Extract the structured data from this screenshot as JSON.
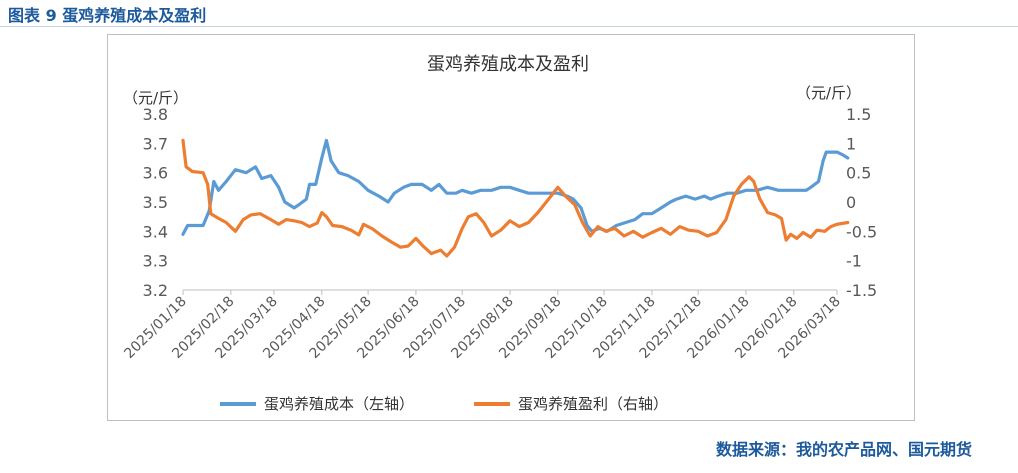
{
  "header": {
    "figure_title": "图表 9  蛋鸡养殖成本及盈利"
  },
  "footer": {
    "source": "数据来源：我的农产品网、国元期货"
  },
  "chart_data": {
    "type": "line",
    "title": "蛋鸡养殖成本及盈利",
    "y_left_unit": "（元/斤）",
    "y_right_unit": "（元/斤）",
    "y_left_ticks": [
      "3.2",
      "3.3",
      "3.4",
      "3.5",
      "3.6",
      "3.7",
      "3.8"
    ],
    "y_right_ticks": [
      "-1.5",
      "-1",
      "-0.5",
      "0",
      "0.5",
      "1",
      "1.5"
    ],
    "y_left_range": [
      3.2,
      3.8
    ],
    "y_right_range": [
      -1.5,
      1.5
    ],
    "x_ticks": [
      "2025/01/18",
      "2025/02/18",
      "2025/03/18",
      "2025/04/18",
      "2025/05/18",
      "2025/06/18",
      "2025/07/18",
      "2025/08/18",
      "2025/09/18",
      "2025/10/18",
      "2025/11/18",
      "2025/12/18",
      "2026/01/18",
      "2026/02/18",
      "2026/03/18"
    ],
    "x_range": [
      "2025/01/18",
      "2026/03/18"
    ],
    "grid": false,
    "legend_position": "bottom",
    "series": [
      {
        "name": "蛋鸡养殖成本（左轴）",
        "axis": "left",
        "color": "#5b9bd5",
        "points": [
          [
            "2025/01/18",
            3.39
          ],
          [
            "2025/01/21",
            3.42
          ],
          [
            "2025/01/31",
            3.42
          ],
          [
            "2025/02/04",
            3.47
          ],
          [
            "2025/02/07",
            3.57
          ],
          [
            "2025/02/10",
            3.54
          ],
          [
            "2025/02/15",
            3.57
          ],
          [
            "2025/02/21",
            3.61
          ],
          [
            "2025/02/28",
            3.6
          ],
          [
            "2025/03/06",
            3.62
          ],
          [
            "2025/03/10",
            3.58
          ],
          [
            "2025/03/16",
            3.59
          ],
          [
            "2025/03/21",
            3.55
          ],
          [
            "2025/03/25",
            3.5
          ],
          [
            "2025/03/31",
            3.48
          ],
          [
            "2025/04/03",
            3.49
          ],
          [
            "2025/04/08",
            3.51
          ],
          [
            "2025/04/10",
            3.56
          ],
          [
            "2025/04/14",
            3.56
          ],
          [
            "2025/04/18",
            3.65
          ],
          [
            "2025/04/21",
            3.71
          ],
          [
            "2025/04/24",
            3.64
          ],
          [
            "2025/04/29",
            3.6
          ],
          [
            "2025/05/05",
            3.59
          ],
          [
            "2025/05/12",
            3.57
          ],
          [
            "2025/05/18",
            3.54
          ],
          [
            "2025/05/25",
            3.52
          ],
          [
            "2025/05/31",
            3.5
          ],
          [
            "2025/06/04",
            3.53
          ],
          [
            "2025/06/10",
            3.55
          ],
          [
            "2025/06/15",
            3.56
          ],
          [
            "2025/06/22",
            3.56
          ],
          [
            "2025/06/28",
            3.54
          ],
          [
            "2025/07/03",
            3.56
          ],
          [
            "2025/07/08",
            3.53
          ],
          [
            "2025/07/14",
            3.53
          ],
          [
            "2025/07/18",
            3.54
          ],
          [
            "2025/07/24",
            3.53
          ],
          [
            "2025/07/30",
            3.54
          ],
          [
            "2025/08/06",
            3.54
          ],
          [
            "2025/08/12",
            3.55
          ],
          [
            "2025/08/18",
            3.55
          ],
          [
            "2025/08/24",
            3.54
          ],
          [
            "2025/08/30",
            3.53
          ],
          [
            "2025/09/06",
            3.53
          ],
          [
            "2025/09/12",
            3.53
          ],
          [
            "2025/09/18",
            3.53
          ],
          [
            "2025/09/24",
            3.52
          ],
          [
            "2025/09/28",
            3.51
          ],
          [
            "2025/10/03",
            3.48
          ],
          [
            "2025/10/07",
            3.42
          ],
          [
            "2025/10/10",
            3.4
          ],
          [
            "2025/10/15",
            3.41
          ],
          [
            "2025/10/20",
            3.4
          ],
          [
            "2025/10/26",
            3.42
          ],
          [
            "2025/11/01",
            3.43
          ],
          [
            "2025/11/07",
            3.44
          ],
          [
            "2025/11/12",
            3.46
          ],
          [
            "2025/11/18",
            3.46
          ],
          [
            "2025/11/24",
            3.48
          ],
          [
            "2025/11/30",
            3.5
          ],
          [
            "2025/12/04",
            3.51
          ],
          [
            "2025/12/10",
            3.52
          ],
          [
            "2025/12/16",
            3.51
          ],
          [
            "2025/12/22",
            3.52
          ],
          [
            "2025/12/26",
            3.51
          ],
          [
            "2025/12/31",
            3.52
          ],
          [
            "2026/01/06",
            3.53
          ],
          [
            "2026/01/12",
            3.53
          ],
          [
            "2026/01/18",
            3.54
          ],
          [
            "2026/01/25",
            3.54
          ],
          [
            "2026/02/01",
            3.55
          ],
          [
            "2026/02/08",
            3.54
          ],
          [
            "2026/02/14",
            3.54
          ],
          [
            "2026/02/20",
            3.54
          ],
          [
            "2026/02/26",
            3.54
          ],
          [
            "2026/03/01",
            3.55
          ],
          [
            "2026/03/06",
            3.57
          ],
          [
            "2026/03/09",
            3.64
          ],
          [
            "2026/03/11",
            3.67
          ],
          [
            "2026/03/18",
            3.67
          ],
          [
            "2026/03/22",
            3.66
          ],
          [
            "2026/03/25",
            3.65
          ]
        ]
      },
      {
        "name": "蛋鸡养殖盈利（右轴）",
        "axis": "right",
        "color": "#ed7d31",
        "points": [
          [
            "2025/01/18",
            1.05
          ],
          [
            "2025/01/20",
            0.6
          ],
          [
            "2025/01/24",
            0.52
          ],
          [
            "2025/01/31",
            0.5
          ],
          [
            "2025/02/03",
            0.3
          ],
          [
            "2025/02/05",
            -0.2
          ],
          [
            "2025/02/10",
            -0.28
          ],
          [
            "2025/02/15",
            -0.35
          ],
          [
            "2025/02/21",
            -0.5
          ],
          [
            "2025/02/26",
            -0.3
          ],
          [
            "2025/03/03",
            -0.22
          ],
          [
            "2025/03/09",
            -0.2
          ],
          [
            "2025/03/16",
            -0.3
          ],
          [
            "2025/03/21",
            -0.38
          ],
          [
            "2025/03/26",
            -0.3
          ],
          [
            "2025/03/31",
            -0.32
          ],
          [
            "2025/04/05",
            -0.35
          ],
          [
            "2025/04/10",
            -0.42
          ],
          [
            "2025/04/15",
            -0.36
          ],
          [
            "2025/04/18",
            -0.18
          ],
          [
            "2025/04/21",
            -0.25
          ],
          [
            "2025/04/25",
            -0.4
          ],
          [
            "2025/05/01",
            -0.42
          ],
          [
            "2025/05/07",
            -0.48
          ],
          [
            "2025/05/12",
            -0.56
          ],
          [
            "2025/05/15",
            -0.38
          ],
          [
            "2025/05/21",
            -0.46
          ],
          [
            "2025/05/27",
            -0.58
          ],
          [
            "2025/06/02",
            -0.68
          ],
          [
            "2025/06/08",
            -0.77
          ],
          [
            "2025/06/13",
            -0.75
          ],
          [
            "2025/06/18",
            -0.62
          ],
          [
            "2025/06/23",
            -0.76
          ],
          [
            "2025/06/28",
            -0.88
          ],
          [
            "2025/07/04",
            -0.82
          ],
          [
            "2025/07/08",
            -0.92
          ],
          [
            "2025/07/13",
            -0.77
          ],
          [
            "2025/07/18",
            -0.45
          ],
          [
            "2025/07/22",
            -0.25
          ],
          [
            "2025/07/27",
            -0.2
          ],
          [
            "2025/08/01",
            -0.35
          ],
          [
            "2025/08/06",
            -0.58
          ],
          [
            "2025/08/12",
            -0.48
          ],
          [
            "2025/08/18",
            -0.32
          ],
          [
            "2025/08/24",
            -0.42
          ],
          [
            "2025/08/30",
            -0.35
          ],
          [
            "2025/09/05",
            -0.18
          ],
          [
            "2025/09/12",
            0.05
          ],
          [
            "2025/09/18",
            0.25
          ],
          [
            "2025/09/23",
            0.1
          ],
          [
            "2025/09/29",
            -0.05
          ],
          [
            "2025/10/04",
            -0.35
          ],
          [
            "2025/10/09",
            -0.58
          ],
          [
            "2025/10/14",
            -0.42
          ],
          [
            "2025/10/19",
            -0.5
          ],
          [
            "2025/10/25",
            -0.45
          ],
          [
            "2025/10/31",
            -0.58
          ],
          [
            "2025/11/06",
            -0.5
          ],
          [
            "2025/11/12",
            -0.6
          ],
          [
            "2025/11/18",
            -0.52
          ],
          [
            "2025/11/24",
            -0.45
          ],
          [
            "2025/11/30",
            -0.55
          ],
          [
            "2025/12/06",
            -0.42
          ],
          [
            "2025/12/12",
            -0.48
          ],
          [
            "2025/12/18",
            -0.5
          ],
          [
            "2025/12/24",
            -0.58
          ],
          [
            "2025/12/30",
            -0.52
          ],
          [
            "2026/01/05",
            -0.3
          ],
          [
            "2026/01/10",
            0.1
          ],
          [
            "2026/01/15",
            0.3
          ],
          [
            "2026/01/20",
            0.43
          ],
          [
            "2026/01/23",
            0.35
          ],
          [
            "2026/01/27",
            0.05
          ],
          [
            "2026/02/01",
            -0.18
          ],
          [
            "2026/02/06",
            -0.22
          ],
          [
            "2026/02/10",
            -0.28
          ],
          [
            "2026/02/13",
            -0.65
          ],
          [
            "2026/02/16",
            -0.55
          ],
          [
            "2026/02/20",
            -0.62
          ],
          [
            "2026/02/24",
            -0.52
          ],
          [
            "2026/03/01",
            -0.6
          ],
          [
            "2026/03/05",
            -0.48
          ],
          [
            "2026/03/10",
            -0.5
          ],
          [
            "2026/03/14",
            -0.42
          ],
          [
            "2026/03/18",
            -0.38
          ],
          [
            "2026/03/25",
            -0.35
          ]
        ]
      }
    ]
  }
}
